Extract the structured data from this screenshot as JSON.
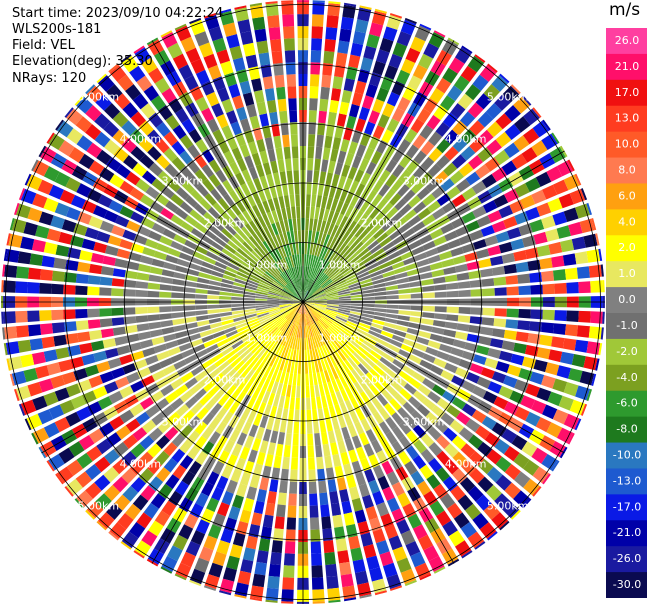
{
  "info": {
    "start_time": "Start time: 2023/09/10 04:22:24",
    "site": "WLS200s-181",
    "field": "Field: VEL",
    "elevation": "Elevation(deg): 35.30",
    "nrays": "NRays: 120"
  },
  "colorbar": {
    "unit": "m/s",
    "ticks": [
      "26.0",
      "21.0",
      "17.0",
      "13.0",
      "10.0",
      "8.0",
      "6.0",
      "4.0",
      "2.0",
      "1.0",
      "0.0",
      "-1.0",
      "-2.0",
      "-4.0",
      "-6.0",
      "-8.0",
      "-10.0",
      "-13.0",
      "-17.0",
      "-21.0",
      "-26.0",
      "-30.0"
    ],
    "colors": [
      "#ff3fa0",
      "#ff0f6a",
      "#f01010",
      "#ff3c20",
      "#ff5a28",
      "#ff7a50",
      "#ffa010",
      "#ffd000",
      "#ffff00",
      "#e8e860",
      "#808080",
      "#707070",
      "#a0c838",
      "#7ca020",
      "#2e9a2e",
      "#1e7a1e",
      "#2a78c0",
      "#1e5ad0",
      "#0a1ae6",
      "#0000a8",
      "#1a1aa0",
      "#0a0a50"
    ]
  },
  "range_labels": [
    "1.00km",
    "2.00km",
    "3.00km",
    "4.00km",
    "5.00km"
  ],
  "chart_data": {
    "type": "heatmap",
    "title": "",
    "field": "VEL",
    "unit": "m/s",
    "nrays": 120,
    "range_rings_km": [
      1,
      2,
      3,
      4,
      5
    ],
    "colorbar_range": [
      -30.0,
      26.0
    ],
    "colorbar_ticks": [
      26.0,
      21.0,
      17.0,
      13.0,
      10.0,
      8.0,
      6.0,
      4.0,
      2.0,
      1.0,
      0.0,
      -1.0,
      -2.0,
      -4.0,
      -6.0,
      -8.0,
      -10.0,
      -13.0,
      -17.0,
      -21.0,
      -26.0,
      -30.0
    ],
    "pattern": {
      "north_half": "negative radial velocity, approaching (-2 to -10 m/s) near center",
      "south_half": "positive radial velocity, receding (2 to 10 m/s) near center",
      "far_range": "noise, full color spread"
    }
  }
}
